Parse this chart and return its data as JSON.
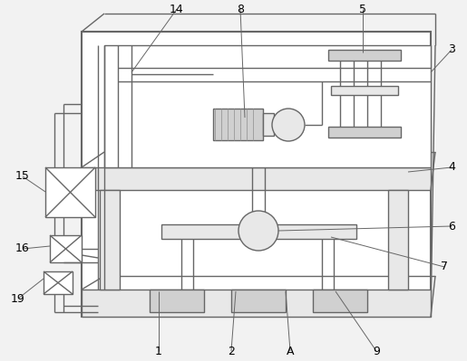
{
  "bg_color": "#f2f2f2",
  "lc": "#666666",
  "lw": 1.0,
  "tlw": 1.5,
  "fs": 9,
  "white": "#ffffff",
  "light": "#e8e8e8",
  "mid": "#d0d0d0"
}
